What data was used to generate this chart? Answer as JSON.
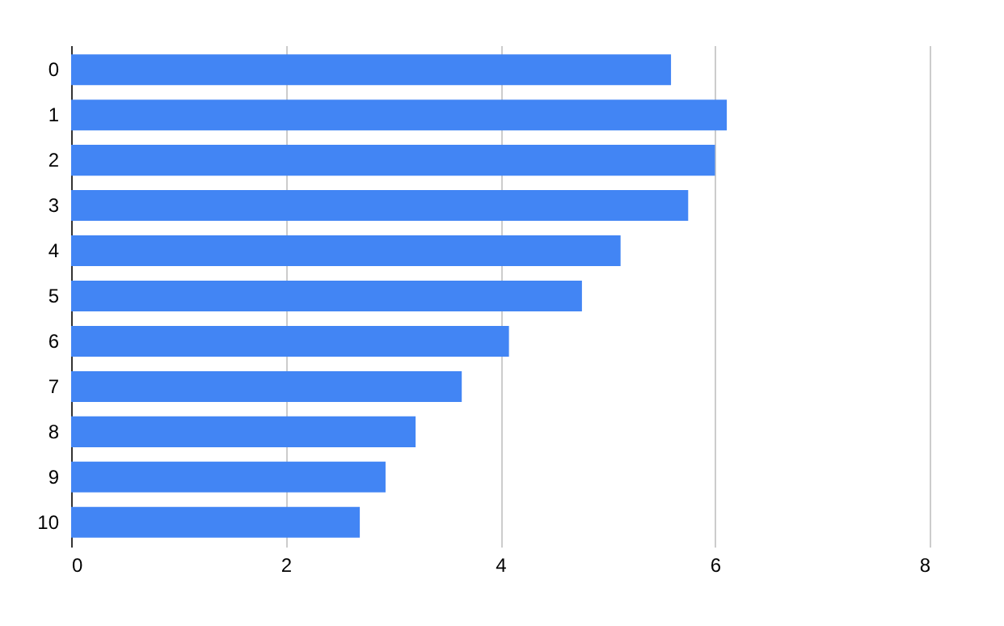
{
  "chart_data": {
    "type": "bar",
    "orientation": "horizontal",
    "categories": [
      "0",
      "1",
      "2",
      "3",
      "4",
      "5",
      "6",
      "7",
      "8",
      "9",
      "10"
    ],
    "values": [
      5.59,
      6.11,
      6.0,
      5.75,
      5.12,
      4.76,
      4.08,
      3.64,
      3.21,
      2.93,
      2.69
    ],
    "color": "#4285f4",
    "xlim": [
      0,
      8
    ],
    "xticks": [
      0,
      2,
      4,
      6,
      8
    ],
    "grid": "x"
  }
}
